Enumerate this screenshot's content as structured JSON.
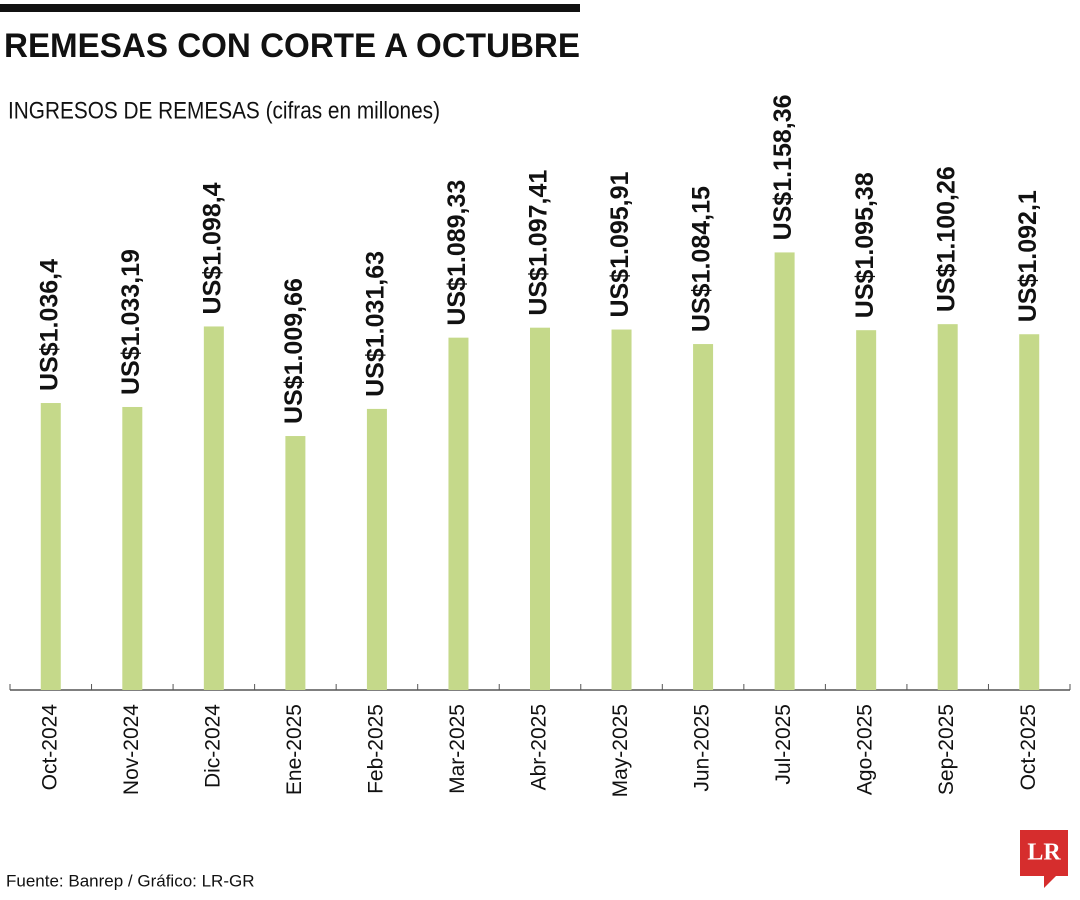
{
  "chart_data": {
    "type": "bar",
    "title": "REMESAS CON CORTE A OCTUBRE",
    "subtitle": "INGRESOS DE REMESAS (cifras en millones)",
    "source": "Fuente: Banrep / Gráfico: LR-GR",
    "logo": "LR",
    "categories": [
      "Oct-2024",
      "Nov-2024",
      "Dic-2024",
      "Ene-2025",
      "Feb-2025",
      "Mar-2025",
      "Abr-2025",
      "May-2025",
      "Jun-2025",
      "Jul-2025",
      "Ago-2025",
      "Sep-2025",
      "Oct-2025"
    ],
    "values": [
      1036.4,
      1033.19,
      1098.4,
      1009.66,
      1031.63,
      1089.33,
      1097.41,
      1095.91,
      1084.15,
      1158.36,
      1095.38,
      1100.26,
      1092.1
    ],
    "value_labels": [
      "US$1.036,4",
      "US$1.033,19",
      "US$1.098,4",
      "US$1.009,66",
      "US$1.031,63",
      "US$1.089,33",
      "US$1.097,41",
      "US$1.095,91",
      "US$1.084,15",
      "US$1.158,36",
      "US$1.095,38",
      "US$1.100,26",
      "US$1.092,1"
    ],
    "color": "#c5d98a",
    "ylim": [
      804,
      1200
    ]
  }
}
